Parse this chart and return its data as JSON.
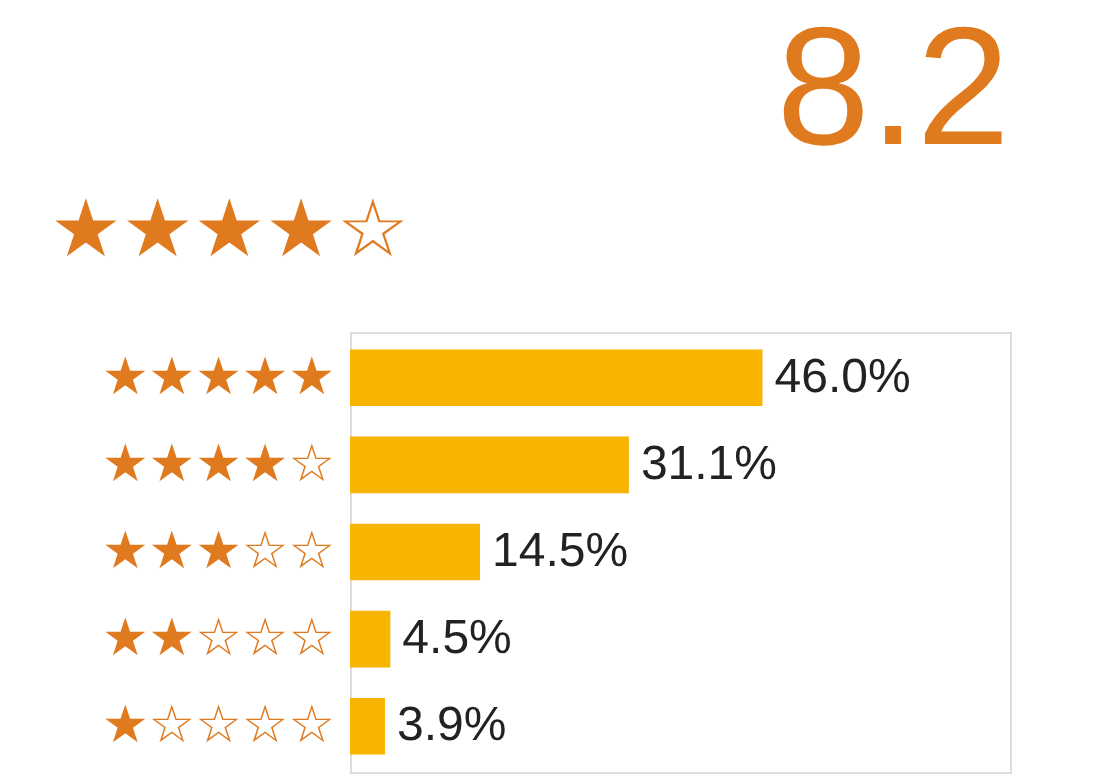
{
  "chart_data": {
    "type": "bar",
    "orientation": "horizontal",
    "title": "8.2",
    "annotations": [
      "★★★★☆"
    ],
    "categories": [
      "★★★★★",
      "★★★★☆",
      "★★★☆☆",
      "★★☆☆☆",
      "★☆☆☆☆"
    ],
    "values": [
      46.0,
      31.1,
      14.5,
      4.5,
      3.9
    ],
    "value_labels": [
      "46.0%",
      "31.1%",
      "14.5%",
      "4.5%",
      "3.9%"
    ],
    "color": "#f7b500",
    "grid": false,
    "tick_labels": "y"
  }
}
